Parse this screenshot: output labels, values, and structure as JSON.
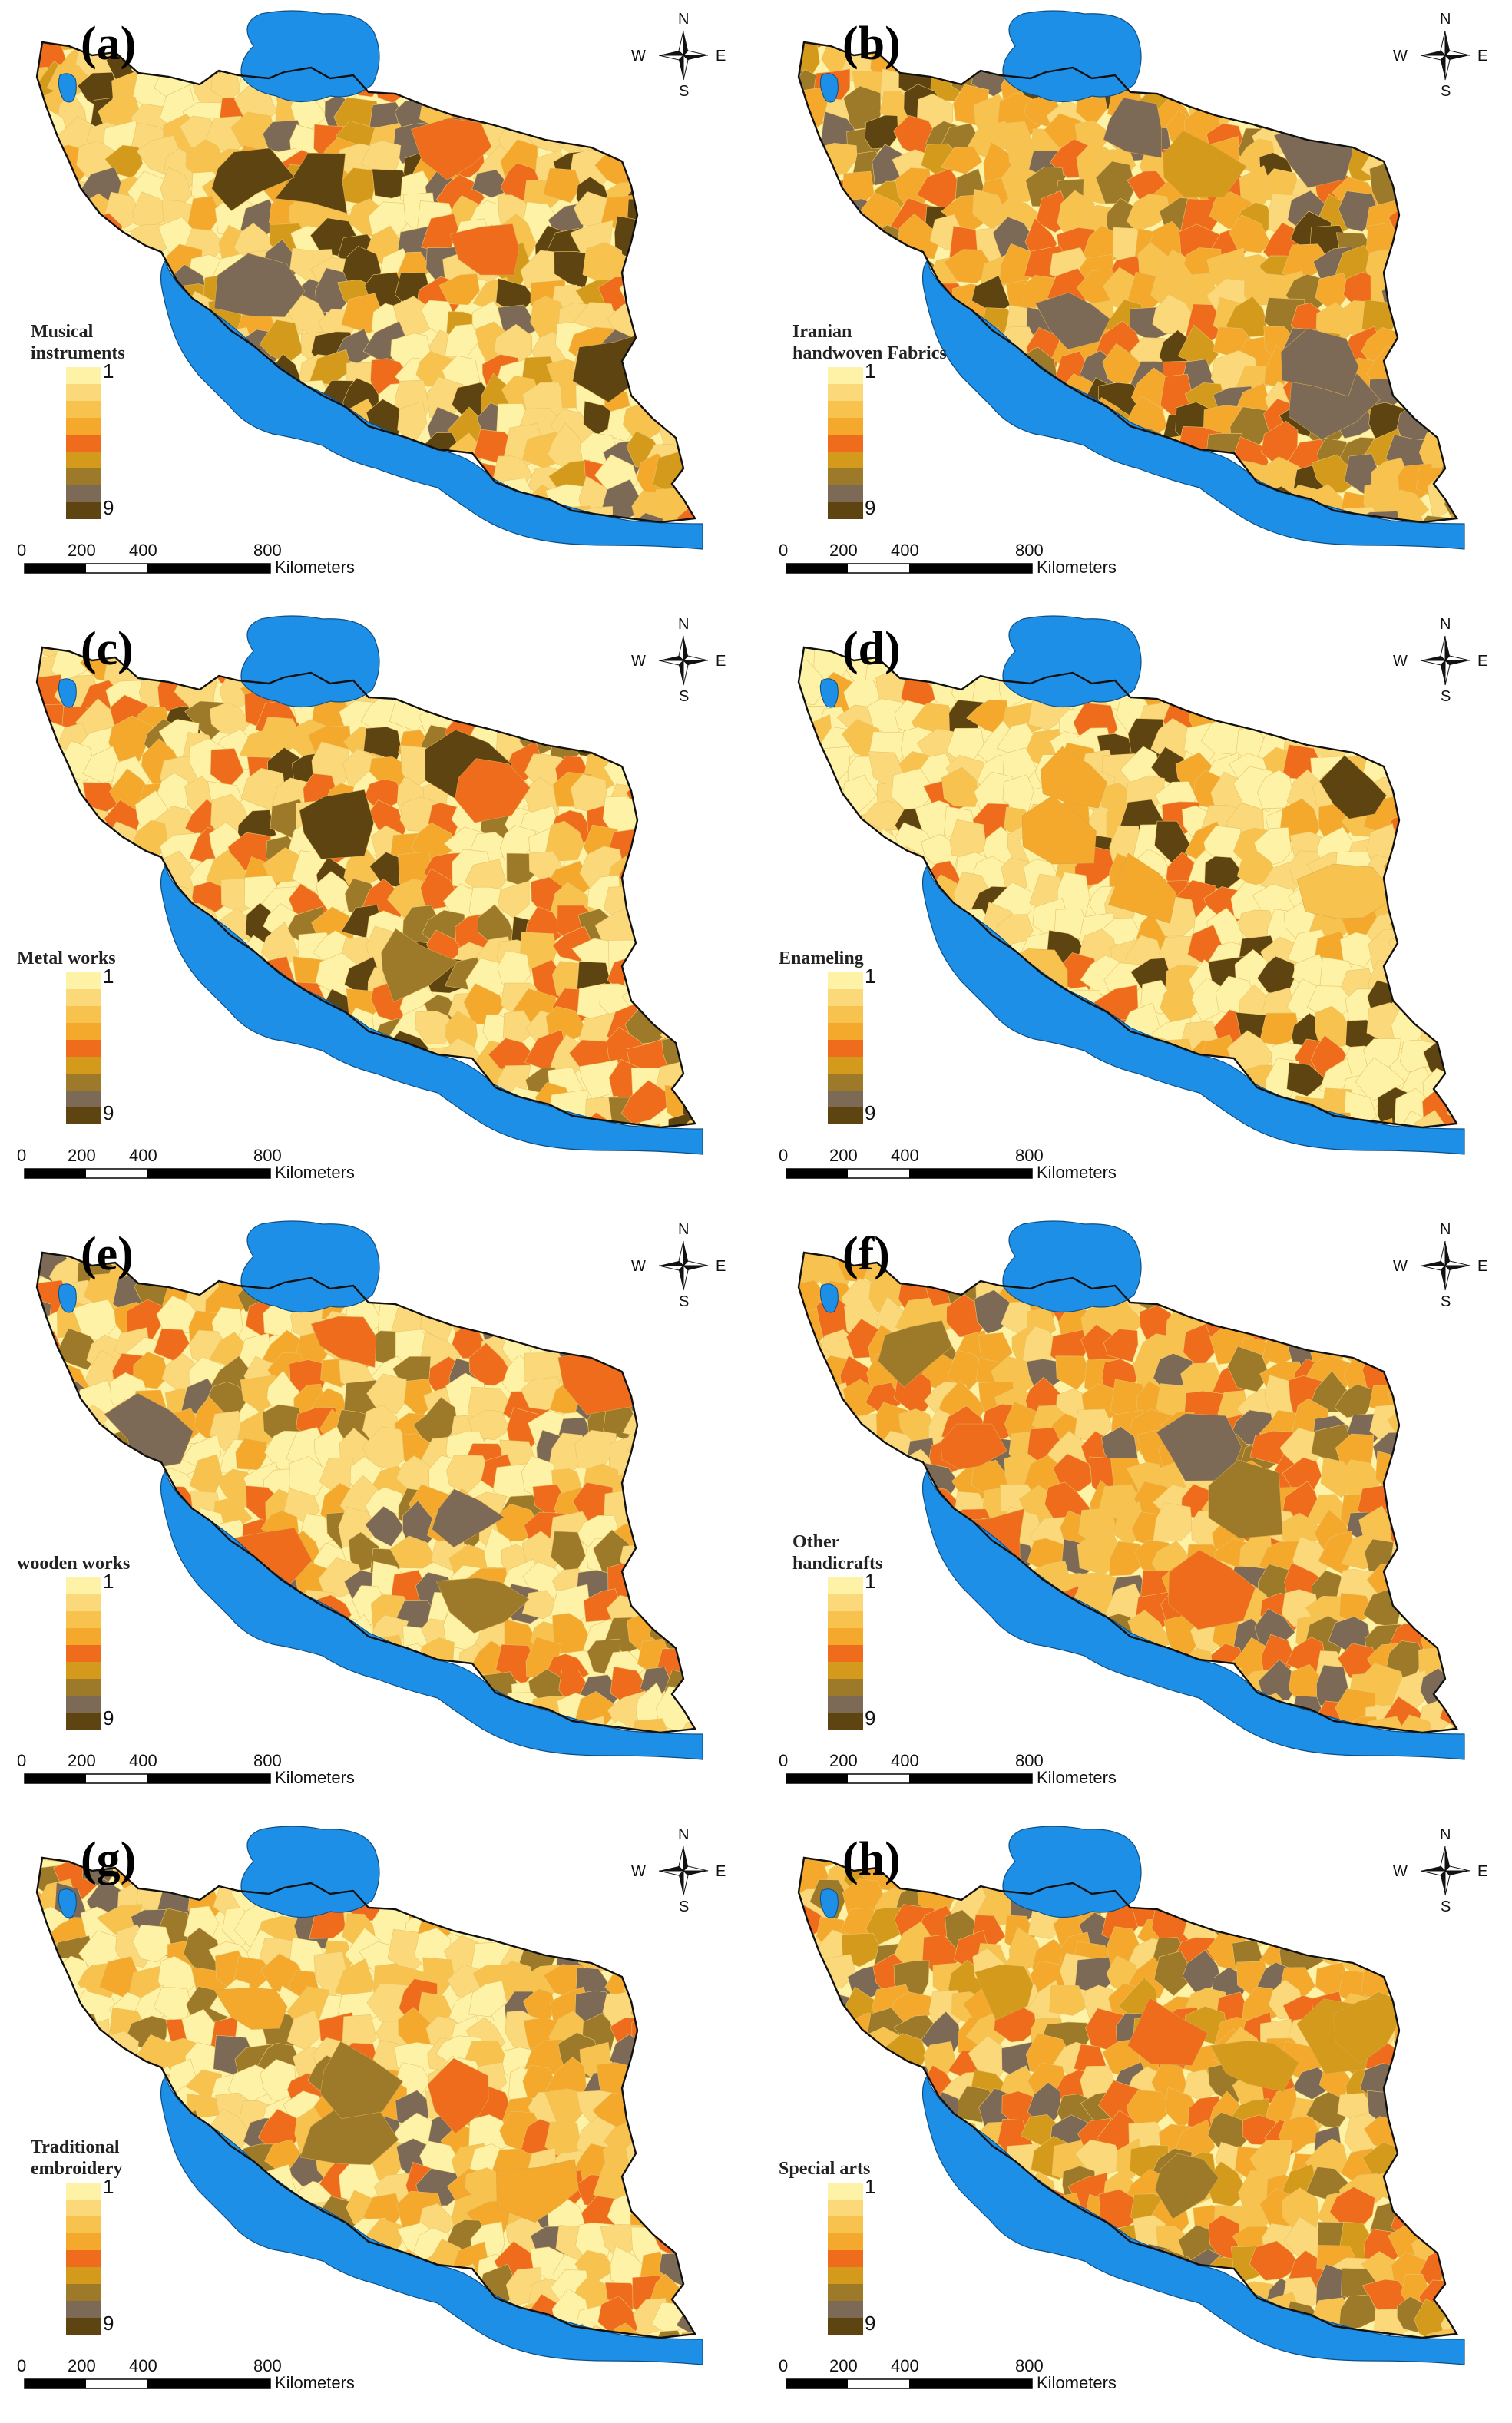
{
  "panels": [
    {
      "label": "(a)",
      "title_lines": [
        "Musical",
        "instruments"
      ]
    },
    {
      "label": "(b)",
      "title_lines": [
        "Iranian",
        "handwoven Fabrics"
      ]
    },
    {
      "label": "(c)",
      "title_lines": [
        "Metal works"
      ]
    },
    {
      "label": "(d)",
      "title_lines": [
        "Enameling"
      ]
    },
    {
      "label": "(e)",
      "title_lines": [
        "wooden works"
      ]
    },
    {
      "label": "(f)",
      "title_lines": [
        "Other",
        "handicrafts"
      ]
    },
    {
      "label": "(g)",
      "title_lines": [
        "Traditional",
        "embroidery"
      ]
    },
    {
      "label": "(h)",
      "title_lines": [
        "Special arts"
      ]
    }
  ],
  "legend": {
    "min_label": "1",
    "max_label": "9",
    "colors": [
      "#fdf2a6",
      "#fbd97a",
      "#f7c24e",
      "#f4a82c",
      "#ef6c1c",
      "#d49a1c",
      "#9c7a2a",
      "#7c6a56",
      "#5e4410"
    ]
  },
  "scale_bar": {
    "ticks": [
      "0",
      "200",
      "400",
      "800"
    ],
    "unit": "Kilometers"
  },
  "compass": {
    "n": "N",
    "s": "S",
    "e": "E",
    "w": "W"
  },
  "map_colors": {
    "sea": "#1e8fe6",
    "border": "#111111",
    "palette": [
      "#fdf2a6",
      "#fbd97a",
      "#f7c24e",
      "#f4a82c",
      "#ef6c1c",
      "#d49a1c",
      "#9c7a2a",
      "#7c6a56",
      "#5e4410"
    ]
  }
}
